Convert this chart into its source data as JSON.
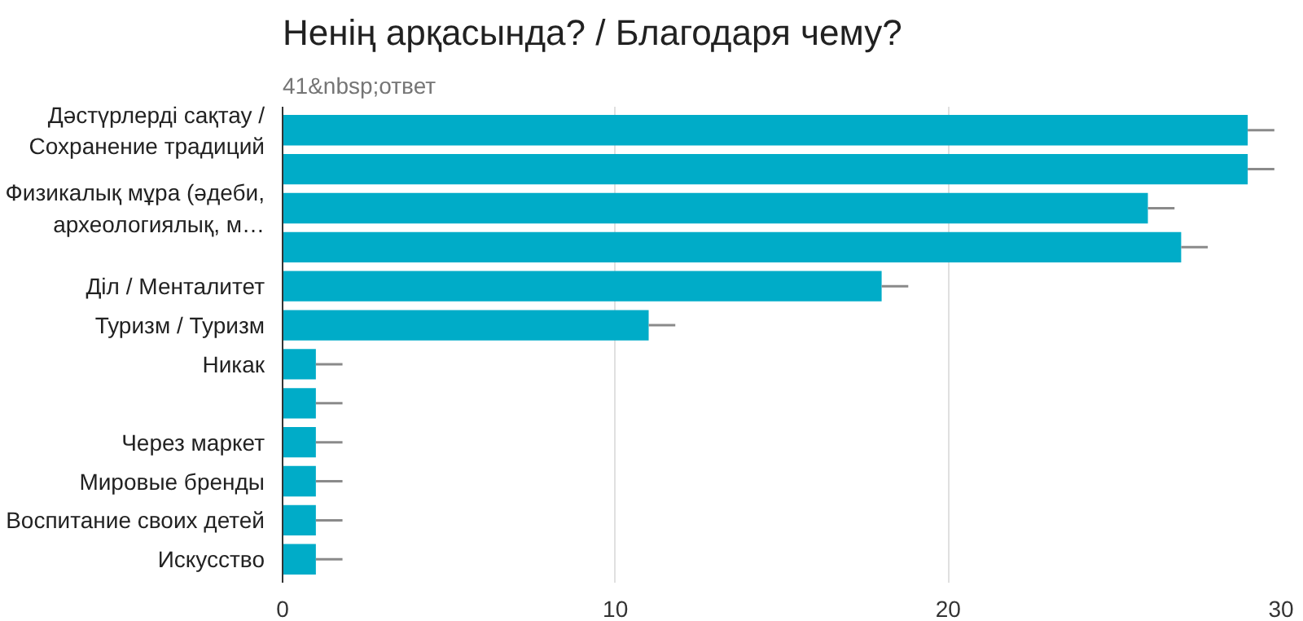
{
  "chart_data": {
    "type": "bar",
    "orientation": "horizontal",
    "title": "Ненің арқасында? / Благодаря чему?",
    "subtitle": "41&nbsp;ответ",
    "categories": [
      "Дәстүрлерді сақтау / Сохранение традиций",
      null,
      "Физикалық мұра (әдеби, археологиялық, м…",
      null,
      "Діл / Менталитет",
      "Туризм / Туризм",
      "Никак",
      null,
      "Через маркет",
      "Мировые бренды",
      "Воспитание своих детей",
      "Искусство"
    ],
    "values": [
      29,
      29,
      26,
      27,
      18,
      11,
      1,
      1,
      1,
      1,
      1,
      1
    ],
    "errors": [
      [
        29,
        29.8
      ],
      [
        29,
        29.8
      ],
      [
        26,
        26.8
      ],
      [
        27,
        27.8
      ],
      [
        18,
        18.8
      ],
      [
        11,
        11.8
      ],
      [
        1,
        1.8
      ],
      [
        1,
        1.8
      ],
      [
        1,
        1.8
      ],
      [
        1,
        1.8
      ],
      [
        1,
        1.8
      ],
      [
        1,
        1.8
      ]
    ],
    "color": "#00acc8",
    "xlim": [
      0,
      30
    ],
    "xticks": [
      0,
      10,
      20,
      30
    ],
    "grid": "x"
  }
}
